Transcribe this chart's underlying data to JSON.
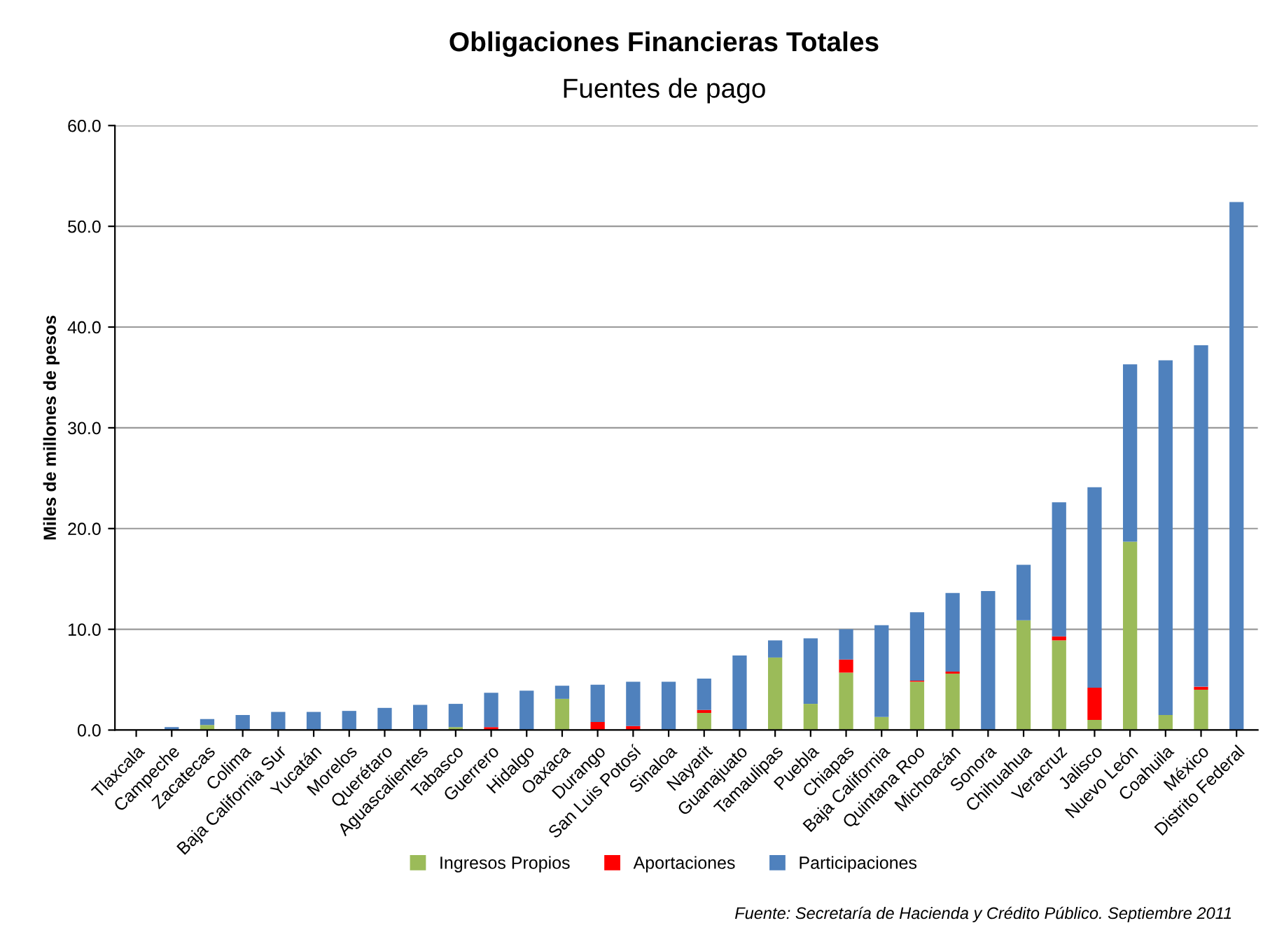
{
  "chart_data": {
    "type": "bar",
    "stacked": true,
    "title": "Obligaciones Financieras Totales",
    "subtitle": "Fuentes de pago",
    "ylabel": "Miles de millones de pesos",
    "categories": [
      "Tlaxcala",
      "Campeche",
      "Zacatecas",
      "Colima",
      "Baja California Sur",
      "Yucatán",
      "Morelos",
      "Querétaro",
      "Aguascalientes",
      "Tabasco",
      "Guerrero",
      "Hidalgo",
      "Oaxaca",
      "Durango",
      "San Luis Potosí",
      "Sinaloa",
      "Nayarit",
      "Guanajuato",
      "Tamaulipas",
      "Puebla",
      "Chiapas",
      "Baja California",
      "Quintana Roo",
      "Michoacán",
      "Sonora",
      "Chihuahua",
      "Veracruz",
      "Jalisco",
      "Nuevo León",
      "Coahuila",
      "México",
      "Distrito Federal"
    ],
    "series": [
      {
        "name": "Ingresos Propios",
        "color": "#9bbb59",
        "values": [
          0,
          0,
          0.5,
          0,
          0,
          0,
          0,
          0,
          0,
          0.3,
          null,
          0,
          3.1,
          0,
          0,
          0,
          1.7,
          0,
          7.2,
          2.6,
          5.7,
          1.3,
          4.8,
          5.6,
          0,
          10.9,
          8.9,
          1.0,
          18.7,
          1.5,
          4.0,
          0
        ]
      },
      {
        "name": "Aportaciones",
        "color": "#ff0000",
        "values": [
          0,
          null,
          0,
          0,
          0,
          0,
          0,
          0,
          0,
          0,
          0.3,
          0,
          0,
          0.8,
          0.4,
          0,
          0.3,
          0,
          0,
          0,
          1.3,
          0,
          0.1,
          0.2,
          0,
          0,
          0.4,
          3.2,
          0,
          0,
          0.3,
          0
        ]
      },
      {
        "name": "Participaciones",
        "color": "#4f81bd",
        "values": [
          0,
          0.3,
          0.6,
          1.5,
          1.8,
          1.8,
          1.9,
          2.2,
          2.5,
          2.3,
          3.4,
          3.9,
          1.3,
          3.7,
          4.4,
          4.8,
          3.1,
          7.4,
          1.7,
          6.5,
          3.0,
          9.1,
          6.8,
          7.8,
          13.8,
          5.5,
          13.3,
          19.9,
          17.6,
          35.2,
          33.9,
          52.4
        ]
      }
    ],
    "ylim": [
      0,
      60
    ],
    "yticks": [
      {
        "value": 0,
        "label": "0.0"
      },
      {
        "value": 10,
        "label": "10.0"
      },
      {
        "value": 20,
        "label": "20.0"
      },
      {
        "value": 30,
        "label": "30.0"
      },
      {
        "value": 40,
        "label": "40.0"
      },
      {
        "value": 50,
        "label": "50.0"
      },
      {
        "value": 60,
        "label": "60.0"
      }
    ],
    "grid": "y",
    "legend": "bottom",
    "annotations": [
      "Fuente: Secretaría de Hacienda y Crédito Público. Septiembre 2011"
    ]
  }
}
